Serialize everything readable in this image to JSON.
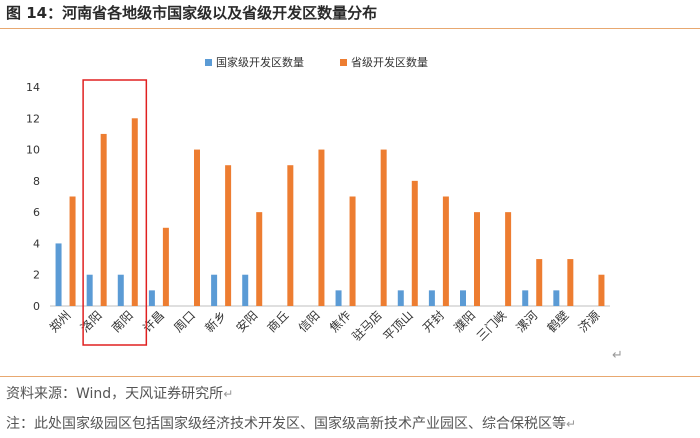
{
  "header": {
    "title": "图 14：河南省各地级市国家级以及省级开发区数量分布",
    "return_mark": "↵"
  },
  "footer": {
    "source": "资料来源：Wind，天风证券研究所",
    "note": "注：此处国家级园区包括国家级经济技术开发区、国家级高新技术产业园区、综合保税区等",
    "return_mark": "↵"
  },
  "chart_data": {
    "type": "bar",
    "categories": [
      "郑州",
      "洛阳",
      "南阳",
      "许昌",
      "周口",
      "新乡",
      "安阳",
      "商丘",
      "信阳",
      "焦作",
      "驻马店",
      "平顶山",
      "开封",
      "濮阳",
      "三门峡",
      "漯河",
      "鹤壁",
      "济源"
    ],
    "series": [
      {
        "name": "国家级开发区数量",
        "color": "#5b9bd5",
        "values": [
          4,
          2,
          2,
          1,
          0,
          2,
          2,
          0,
          0,
          1,
          0,
          1,
          1,
          1,
          0,
          1,
          1,
          0
        ]
      },
      {
        "name": "省级开发区数量",
        "color": "#ed7d31",
        "values": [
          7,
          11,
          12,
          5,
          10,
          9,
          6,
          9,
          10,
          7,
          10,
          8,
          7,
          6,
          6,
          3,
          3,
          2
        ]
      }
    ],
    "ylim": [
      0,
      14
    ],
    "yticks": [
      0,
      2,
      4,
      6,
      8,
      10,
      12,
      14
    ],
    "legend": "top-center",
    "highlight": {
      "categories": [
        "洛阳",
        "南阳"
      ],
      "color": "#e02020"
    },
    "grid": false
  }
}
